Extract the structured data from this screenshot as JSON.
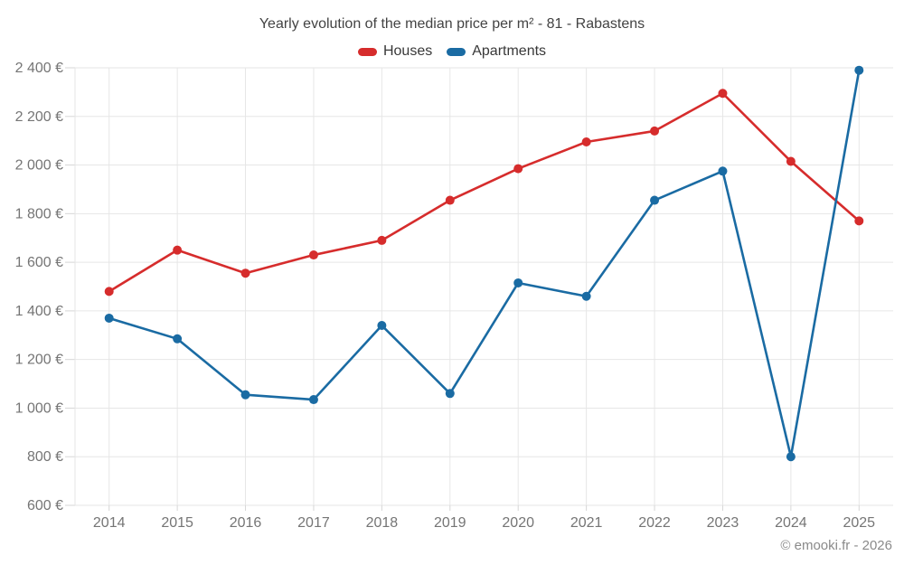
{
  "title": "Yearly evolution of the median price per m² - 81 - Rabastens",
  "footer": "© emooki.fr - 2026",
  "colors": {
    "houses": "#d62c2c",
    "apartments": "#1a6ba3",
    "gridline": "#e6e6e6",
    "tick": "#d6d6d6",
    "axis_text": "#757575"
  },
  "chart_data": {
    "type": "line",
    "categories": [
      "2014",
      "2015",
      "2016",
      "2017",
      "2018",
      "2019",
      "2020",
      "2021",
      "2022",
      "2023",
      "2024",
      "2025"
    ],
    "series": [
      {
        "name": "Houses",
        "color": "#d62c2c",
        "values": [
          1480,
          1650,
          1555,
          1630,
          1690,
          1855,
          1985,
          2095,
          2140,
          2295,
          2015,
          1770
        ]
      },
      {
        "name": "Apartments",
        "color": "#1a6ba3",
        "values": [
          1370,
          1285,
          1055,
          1035,
          1340,
          1060,
          1515,
          1460,
          1855,
          1975,
          800,
          2390
        ]
      }
    ],
    "title": "Yearly evolution of the median price per m² - 81 - Rabastens",
    "xlabel": "",
    "ylabel": "",
    "ylim": [
      600,
      2400
    ],
    "ytick_step": 200,
    "ytick_labels": [
      "600 €",
      "800 €",
      "1 000 €",
      "1 200 €",
      "1 400 €",
      "1 600 €",
      "1 800 €",
      "2 000 €",
      "2 200 €",
      "2 400 €"
    ],
    "grid": true,
    "legend_position": "top"
  }
}
